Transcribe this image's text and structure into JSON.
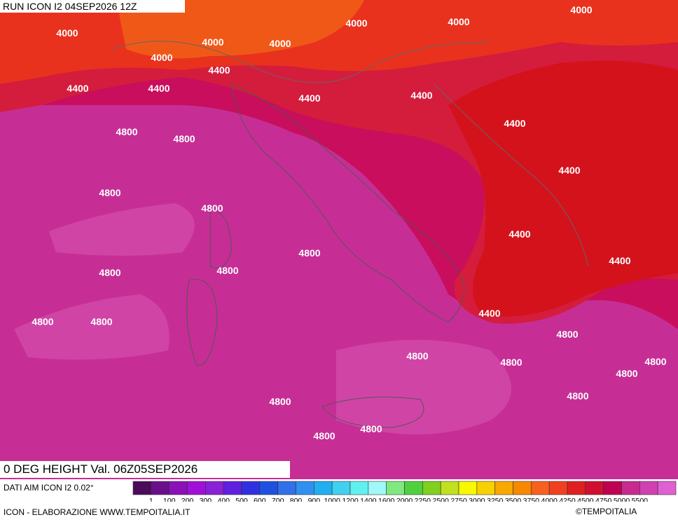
{
  "header": {
    "run": "RUN ICON I2 04SEP2026 12Z",
    "title": "0 DEG HEIGHT Val. 06Z05SEP2026"
  },
  "contour_labels": [
    "4000",
    "4000",
    "4000",
    "4000",
    "4000",
    "4000",
    "4000",
    "4400",
    "4400",
    "4400",
    "4400",
    "4400",
    "4400",
    "4400",
    "4400",
    "4400",
    "4400",
    "4800",
    "4800",
    "4800",
    "4800",
    "4800",
    "4800",
    "4800",
    "4800",
    "4800",
    "4800",
    "4800",
    "4800",
    "4800",
    "4800",
    "4800",
    "4800",
    "4800",
    "4800"
  ],
  "legend": {
    "labels": [
      "1",
      "100",
      "200",
      "300",
      "400",
      "500",
      "600",
      "700",
      "800",
      "900",
      "1000",
      "1200",
      "1400",
      "1600",
      "2000",
      "2250",
      "2500",
      "2750",
      "3000",
      "3250",
      "3500",
      "3750",
      "4000",
      "4250",
      "4500",
      "4750",
      "5000",
      "5500"
    ],
    "colors": [
      "#4b0a5a",
      "#6a0f8a",
      "#8a10b8",
      "#a010d8",
      "#8a20d8",
      "#6020e0",
      "#3030e0",
      "#2050e0",
      "#3070e8",
      "#3090f0",
      "#20b0f0",
      "#40d0f0",
      "#60f0f0",
      "#a0f8f8",
      "#80e880",
      "#50d040",
      "#80d020",
      "#c0e020",
      "#f8f800",
      "#f8d000",
      "#f8a800",
      "#f88800",
      "#f86020",
      "#f04020",
      "#e02020",
      "#d01030",
      "#c00050",
      "#c82a90",
      "#d040b0",
      "#e060d0"
    ]
  },
  "footer": {
    "source": "DATI AIM ICON I2 0.02°",
    "credit": "ICON - ELABORAZIONE WWW.TEMPOITALIA.IT",
    "copyright": "©TEMPOITALIA"
  }
}
